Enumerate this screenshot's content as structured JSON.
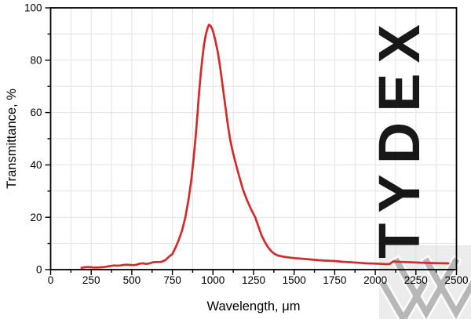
{
  "chart_data": {
    "type": "line",
    "title": "",
    "xlabel": "Wavelength, μm",
    "ylabel": "Transmittance, %",
    "xlim": [
      0,
      2500
    ],
    "ylim": [
      0,
      100
    ],
    "x_major_ticks": [
      0,
      250,
      500,
      750,
      1000,
      1250,
      1500,
      1750,
      2000,
      2250,
      2500
    ],
    "x_tick_labels": [
      "0",
      "250",
      "500",
      "750",
      "1000",
      "1250",
      "1500",
      "1750",
      "2000",
      "2250",
      "2500"
    ],
    "x_minor_step": 125,
    "y_major_ticks": [
      0,
      20,
      40,
      60,
      80,
      100
    ],
    "y_tick_labels": [
      "0",
      "20",
      "40",
      "60",
      "80",
      "100"
    ],
    "y_minor_step": 10,
    "grid": "minor gridlines on (light gray)",
    "legend": "none",
    "peak": {
      "wavelength_um": 975,
      "transmittance_pct": 93.5
    },
    "series": [
      {
        "name": "Transmittance",
        "color": "#d22b2b",
        "x": [
          190,
          210,
          230,
          250,
          270,
          290,
          310,
          330,
          350,
          370,
          390,
          410,
          430,
          450,
          470,
          490,
          510,
          530,
          550,
          570,
          590,
          610,
          630,
          650,
          670,
          690,
          710,
          730,
          750,
          770,
          790,
          810,
          830,
          850,
          865,
          880,
          895,
          905,
          915,
          925,
          935,
          945,
          955,
          965,
          975,
          985,
          995,
          1005,
          1015,
          1030,
          1045,
          1060,
          1075,
          1090,
          1105,
          1120,
          1140,
          1160,
          1185,
          1210,
          1235,
          1260,
          1280,
          1300,
          1320,
          1340,
          1360,
          1380,
          1400,
          1430,
          1460,
          1500,
          1550,
          1600,
          1650,
          1700,
          1750,
          1800,
          1850,
          1900,
          1950,
          2000,
          2040,
          2070,
          2090,
          2110,
          2140,
          2180,
          2220,
          2260,
          2300,
          2350,
          2400,
          2450
        ],
        "y": [
          0.7,
          0.9,
          1.0,
          0.9,
          0.8,
          0.8,
          0.9,
          1.0,
          1.2,
          1.4,
          1.6,
          1.5,
          1.6,
          1.8,
          1.9,
          1.8,
          1.7,
          1.9,
          2.3,
          2.4,
          2.2,
          2.4,
          2.8,
          2.9,
          2.9,
          3.1,
          3.8,
          5.0,
          6.0,
          8.5,
          11.5,
          15,
          20,
          27,
          33.5,
          42,
          52,
          60,
          68,
          75,
          81,
          86,
          89.5,
          92,
          93.5,
          93.2,
          92,
          90,
          87.5,
          83,
          77,
          70,
          63,
          56,
          50,
          45.5,
          40.5,
          36,
          30.5,
          26.5,
          23,
          20,
          16.5,
          13,
          10.5,
          8.5,
          7,
          6,
          5.4,
          5.0,
          4.7,
          4.4,
          4.15,
          3.9,
          3.6,
          3.4,
          3.3,
          3.0,
          2.8,
          2.6,
          2.4,
          2.3,
          2.2,
          2.1,
          2.2,
          3.1,
          3.0,
          2.9,
          2.8,
          2.7,
          2.6,
          2.5,
          2.45,
          2.4
        ]
      }
    ]
  },
  "watermark": {
    "text": "TYDEX",
    "text_color": "#c9c9c9",
    "square_color": "#dadada",
    "logo": "tydex-chevron-w-logo",
    "logo_color": "#b3b3b3"
  },
  "colors": {
    "curve": "#d22b2b",
    "grid": "#e3e3e3",
    "axis": "#000000",
    "background": "#ffffff"
  }
}
